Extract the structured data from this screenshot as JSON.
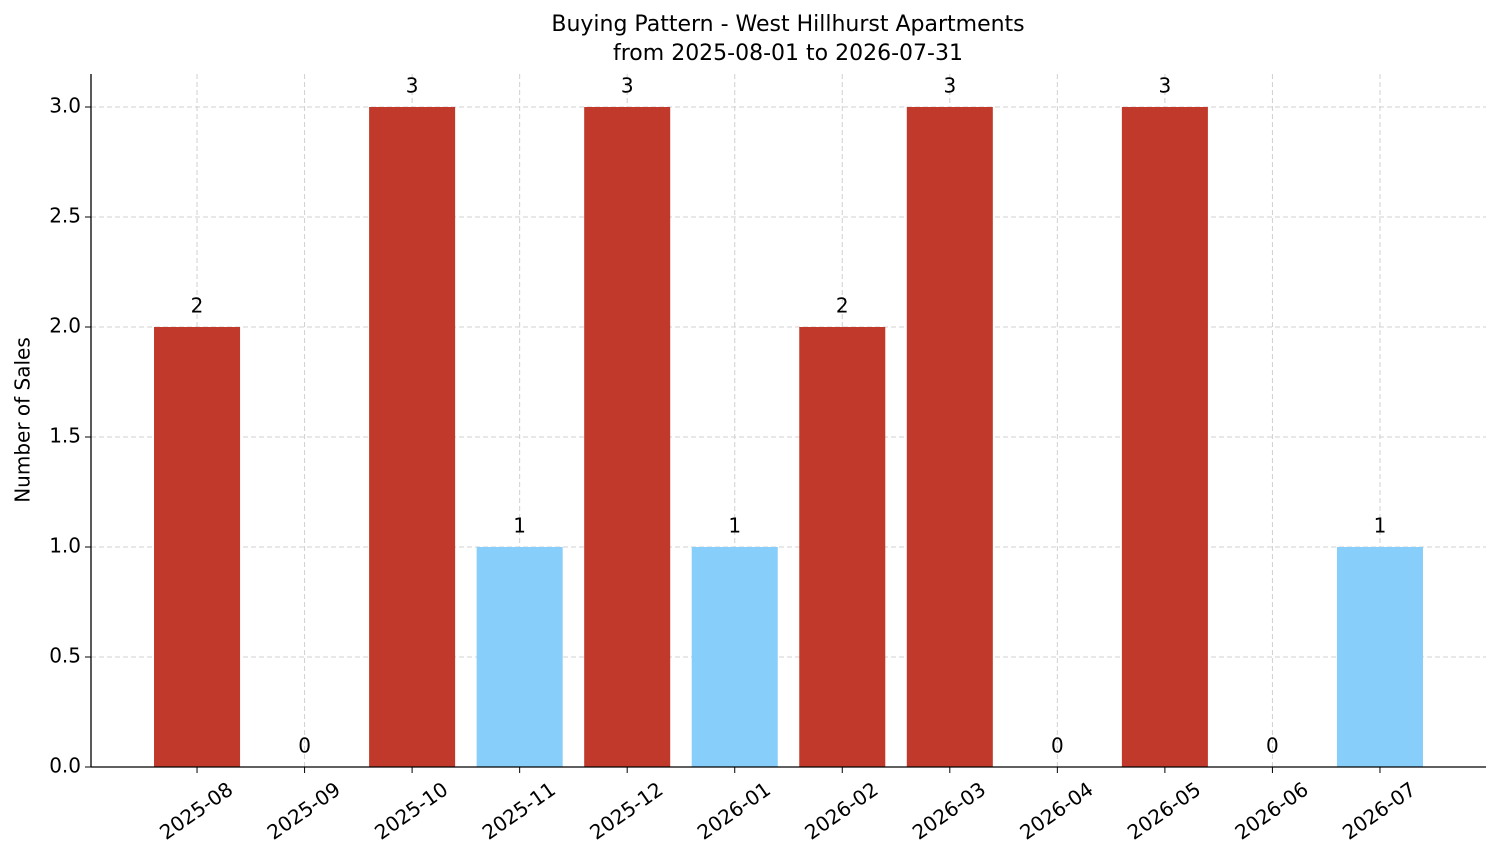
{
  "chart_data": {
    "type": "bar",
    "title": "Buying Pattern - West Hillhurst Apartments",
    "subtitle": "from 2025-08-01 to 2026-07-31",
    "y_label": "Number of Sales",
    "categories": [
      "2025-08",
      "2025-09",
      "2025-10",
      "2025-11",
      "2025-12",
      "2026-01",
      "2026-02",
      "2026-03",
      "2026-04",
      "2026-05",
      "2026-06",
      "2026-07"
    ],
    "values": [
      2,
      0,
      3,
      1,
      3,
      1,
      2,
      3,
      0,
      3,
      0,
      1
    ],
    "colors": [
      "#c0392b",
      "#c0392b",
      "#c0392b",
      "#87cefa",
      "#c0392b",
      "#87cefa",
      "#c0392b",
      "#c0392b",
      "#c0392b",
      "#c0392b",
      "#c0392b",
      "#87cefa"
    ],
    "ylim": [
      0,
      3.15
    ],
    "yticks": [
      {
        "value": 0,
        "label": "0.0"
      },
      0.5,
      {
        "value": 1,
        "label": "1.0"
      },
      1.5,
      {
        "value": 2,
        "label": "2.0"
      },
      2.5,
      {
        "value": 3,
        "label": "3.0"
      }
    ],
    "grid": true
  }
}
